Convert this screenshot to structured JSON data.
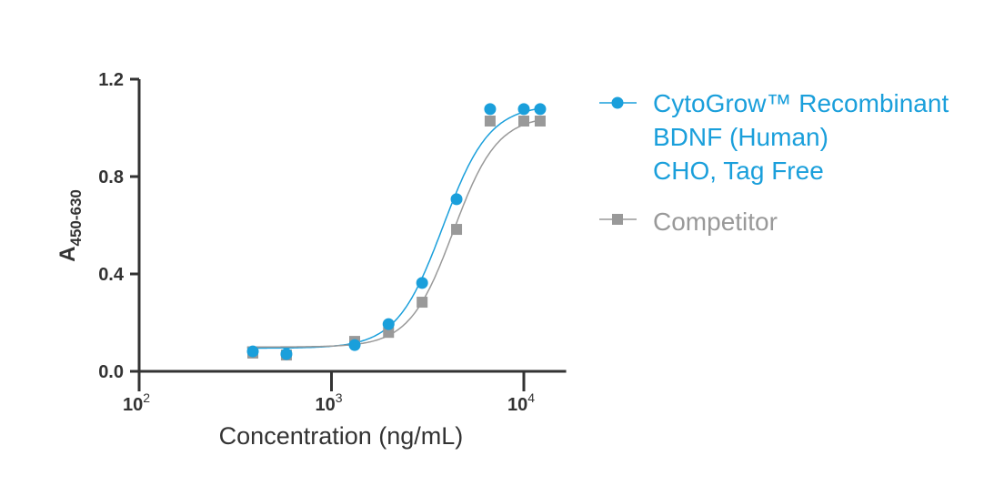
{
  "chart_data": {
    "type": "scatter",
    "title": "",
    "xlabel": "Concentration (ng/mL)",
    "ylabel_main": "A",
    "ylabel_sub": "450-630",
    "x_scale": "log",
    "xlim": [
      100,
      16600
    ],
    "ylim": [
      0,
      1.2
    ],
    "x_ticks": [
      {
        "value": 100,
        "base": "10",
        "exp": "2"
      },
      {
        "value": 1000,
        "base": "10",
        "exp": "3"
      },
      {
        "value": 10000,
        "base": "10",
        "exp": "4"
      }
    ],
    "y_ticks": [
      {
        "value": 0,
        "label": "0.0"
      },
      {
        "value": 0.4,
        "label": "0.4"
      },
      {
        "value": 0.8,
        "label": "0.8"
      },
      {
        "value": 1.2,
        "label": "1.2"
      }
    ],
    "grid": false,
    "legend_placement": "right",
    "series": [
      {
        "name": "CytoGrow™ Recombinant BDNF (Human) CHO, Tag Free",
        "legend_lines": [
          "CytoGrow™ Recombinant",
          "BDNF (Human)",
          "CHO, Tag Free"
        ],
        "color": "#1a9fdb",
        "marker": "circle",
        "x": [
          390,
          583,
          1320,
          1980,
          2960,
          4470,
          6680,
          10000,
          12160
        ],
        "y": [
          0.082,
          0.071,
          0.108,
          0.194,
          0.363,
          0.707,
          1.077,
          1.077,
          1.077
        ],
        "fit": {
          "model": "4PL",
          "bottom": 0.095,
          "top": 1.095,
          "ec50": 3800,
          "hill": 3.6
        }
      },
      {
        "name": "Competitor",
        "legend_lines": [
          "Competitor"
        ],
        "color": "#999999",
        "marker": "square",
        "x": [
          390,
          583,
          1320,
          1980,
          2960,
          4470,
          6680,
          10000,
          12160
        ],
        "y": [
          0.075,
          0.067,
          0.123,
          0.16,
          0.284,
          0.583,
          1.028,
          1.028,
          1.028
        ],
        "fit": {
          "model": "4PL",
          "bottom": 0.1,
          "top": 1.05,
          "ec50": 4300,
          "hill": 3.8
        }
      }
    ]
  }
}
